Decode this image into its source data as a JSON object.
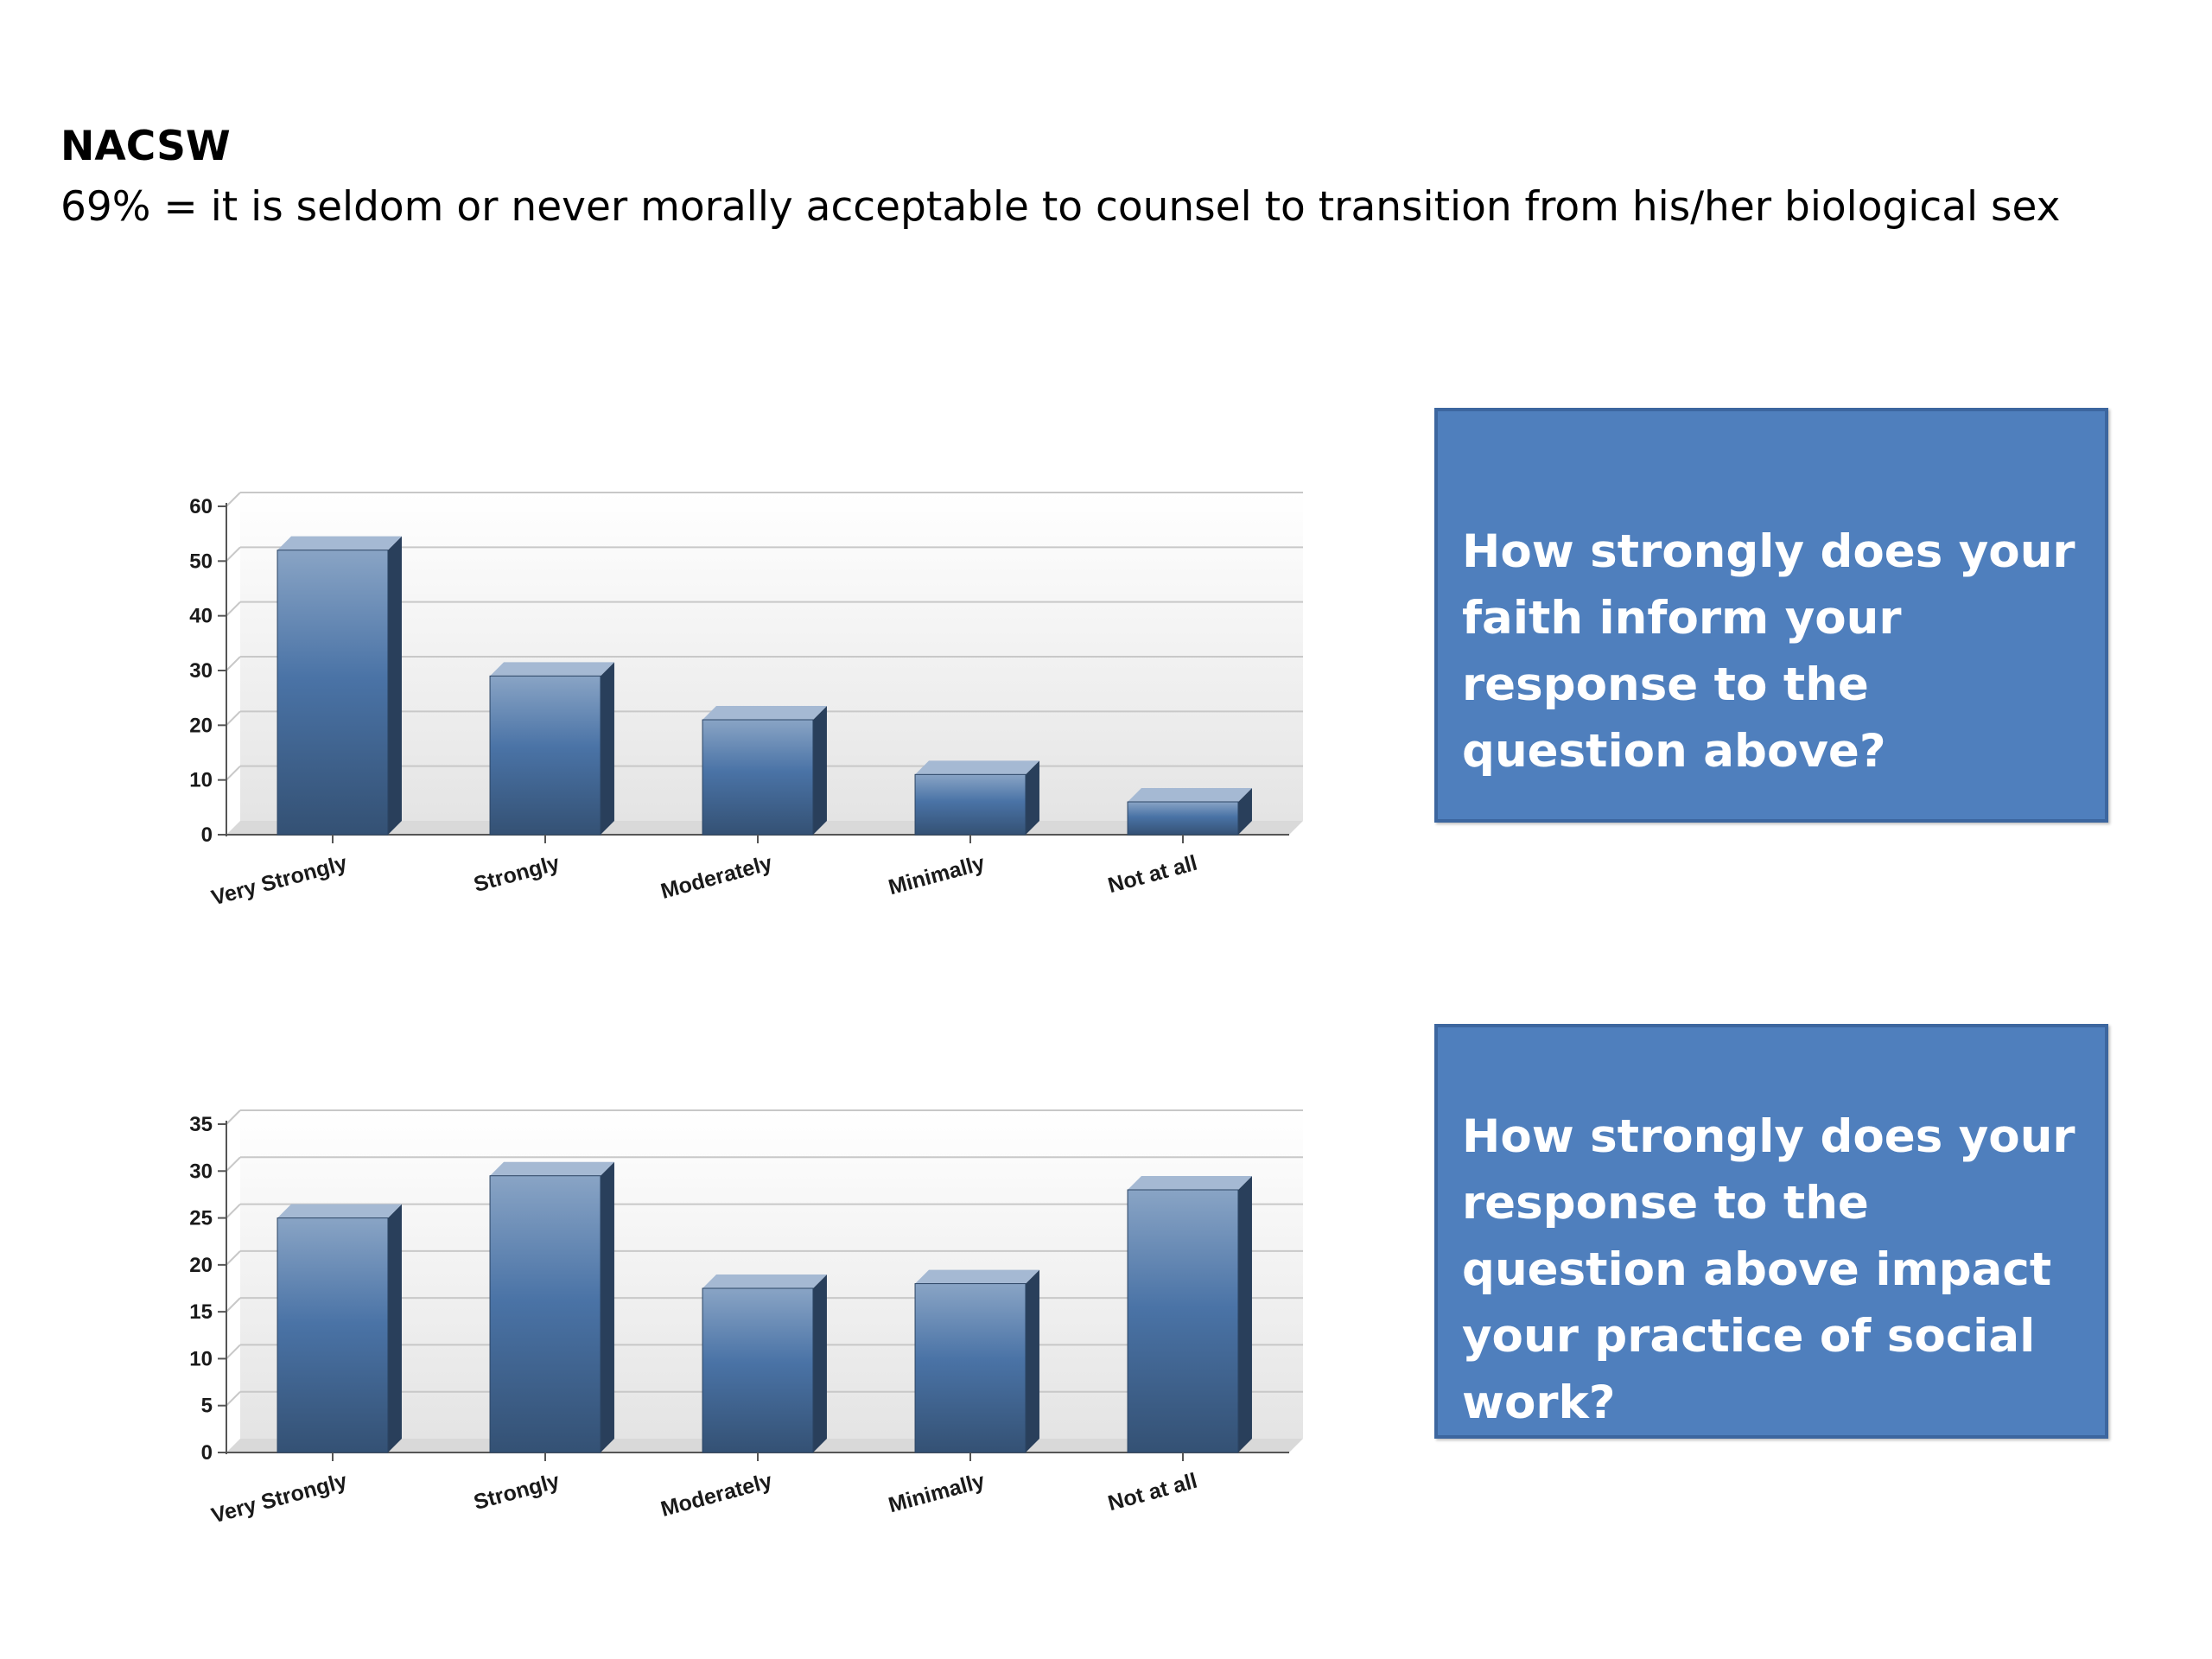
{
  "slide": {
    "heading": "NACSW",
    "subtitle": "69% = it is seldom or never morally acceptable to counsel to transition from his/her biological sex"
  },
  "questions": [
    "How strongly does your faith inform your response to the question above?",
    "How strongly does your response to the question above impact your practice of social work?"
  ],
  "chart_data": [
    {
      "type": "bar",
      "title": "",
      "xlabel": "",
      "ylabel": "",
      "categories": [
        "Very Strongly",
        "Strongly",
        "Moderately",
        "Minimally",
        "Not at all"
      ],
      "values": [
        52,
        29,
        21,
        11,
        6
      ],
      "ylim": [
        0,
        60
      ],
      "yticks": [
        0,
        10,
        20,
        30,
        40,
        50,
        60
      ],
      "grid": true,
      "legend": "none",
      "bar_color": "#4a73a6"
    },
    {
      "type": "bar",
      "title": "",
      "xlabel": "",
      "ylabel": "",
      "categories": [
        "Very Strongly",
        "Strongly",
        "Moderately",
        "Minimally",
        "Not at all"
      ],
      "values": [
        25,
        29.5,
        17.5,
        18,
        28
      ],
      "ylim": [
        0,
        35
      ],
      "yticks": [
        0,
        5,
        10,
        15,
        20,
        25,
        30,
        35
      ],
      "grid": true,
      "legend": "none",
      "bar_color": "#4a73a6"
    }
  ]
}
